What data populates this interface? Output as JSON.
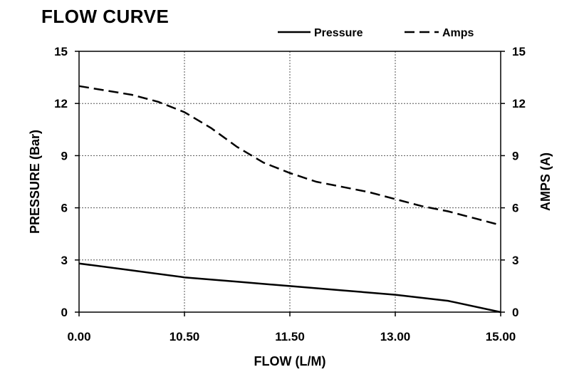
{
  "chart_data": {
    "type": "line",
    "title": "FLOW CURVE",
    "xlabel": "FLOW (L/M)",
    "ylabel_left": "PRESSURE (Bar)",
    "ylabel_right": "AMPS (A)",
    "x_tick_labels": [
      "0.00",
      "10.50",
      "11.50",
      "13.00",
      "15.00"
    ],
    "y_ticks": [
      0,
      3,
      6,
      9,
      12,
      15
    ],
    "ylim": [
      0,
      15
    ],
    "grid": true,
    "legend_position": "top-right",
    "series": [
      {
        "name": "Pressure",
        "axis": "left",
        "style": "solid",
        "color": "#000000",
        "x_index": [
          0,
          0.5,
          1,
          1.5,
          2,
          2.5,
          3,
          3.5,
          4
        ],
        "values": [
          2.8,
          2.4,
          2.0,
          1.75,
          1.5,
          1.25,
          1.0,
          0.65,
          0.0
        ]
      },
      {
        "name": "Amps",
        "axis": "right",
        "style": "dashed",
        "color": "#000000",
        "x_index": [
          0,
          0.25,
          0.5,
          0.75,
          1,
          1.25,
          1.5,
          1.75,
          2,
          2.25,
          2.5,
          2.75,
          3,
          3.25,
          3.5,
          3.75,
          4
        ],
        "values": [
          13.0,
          12.75,
          12.5,
          12.1,
          11.5,
          10.6,
          9.5,
          8.6,
          8.0,
          7.5,
          7.2,
          6.9,
          6.5,
          6.1,
          5.8,
          5.4,
          5.0
        ]
      }
    ]
  }
}
